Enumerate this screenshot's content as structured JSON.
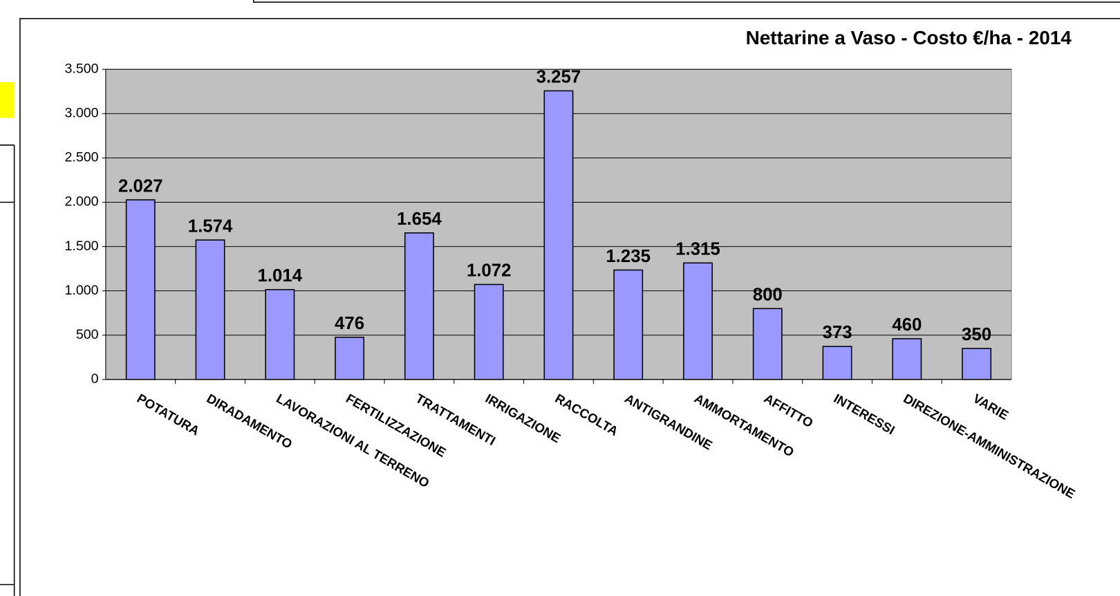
{
  "chart_data": {
    "type": "bar",
    "title": "Nettarine a Vaso - Costo  €/ha - 2014",
    "categories": [
      "POTATURA",
      "DIRADAMENTO",
      "LAVORAZIONI AL TERRENO",
      "FERTILIZZAZIONE",
      "TRATTAMENTI",
      "IRRIGAZIONE",
      "RACCOLTA",
      "ANTIGRANDINE",
      "AMMORTAMENTO",
      "AFFITTO",
      "INTERESSI",
      "DIREZIONE-AMMINISTRAZIONE",
      "VARIE"
    ],
    "values": [
      2027,
      1574,
      1014,
      476,
      1654,
      1072,
      3257,
      1235,
      1315,
      800,
      373,
      460,
      350
    ],
    "value_labels": [
      "2.027",
      "1.574",
      "1.014",
      "476",
      "1.654",
      "1.072",
      "3.257",
      "1.235",
      "1.315",
      "800",
      "373",
      "460",
      "350"
    ],
    "color": "#9999ff",
    "ylim": [
      0,
      3500
    ],
    "yticks": [
      0,
      500,
      {
        "value": 1000,
        "label": "1.000"
      },
      {
        "value": 1500,
        "label": "1.500"
      },
      {
        "value": 2000,
        "label": "2.000"
      },
      {
        "value": 2500,
        "label": "2.500"
      },
      {
        "value": 3000,
        "label": "3.000"
      },
      {
        "value": 3500,
        "label": "3.500"
      }
    ],
    "grid": true
  }
}
